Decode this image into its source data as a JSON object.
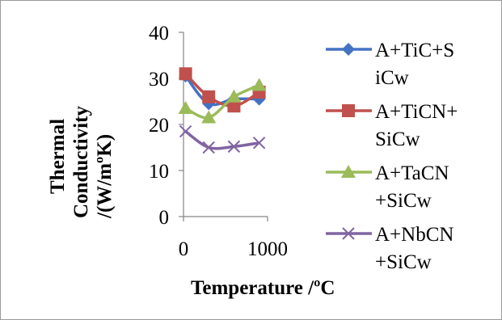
{
  "chart_data": {
    "type": "line",
    "title": "",
    "xlabel": "Temperature /ºC",
    "ylabel_lines": [
      "Thermal",
      "Conductivity",
      "/(W/mºK)"
    ],
    "xlim": [
      0,
      1000
    ],
    "ylim": [
      0,
      40
    ],
    "x_ticks": [
      "0",
      "1000"
    ],
    "y_ticks": [
      "0",
      "10",
      "20",
      "30",
      "40"
    ],
    "grid": false,
    "legend_position": "right",
    "series": [
      {
        "name_lines": [
          "A+TiC+S",
          "iCw"
        ],
        "color": "#4472C4",
        "marker": "diamond",
        "x": [
          25,
          300,
          600,
          900
        ],
        "y": [
          30.5,
          24.5,
          25.5,
          25.5
        ]
      },
      {
        "name_lines": [
          "A+TiCN+",
          "SiCw"
        ],
        "color": "#C0504D",
        "marker": "square",
        "x": [
          25,
          300,
          600,
          900
        ],
        "y": [
          31,
          26,
          24,
          27
        ]
      },
      {
        "name_lines": [
          "A+TaCN",
          "+SiCw"
        ],
        "color": "#9BBB59",
        "marker": "triangle",
        "x": [
          25,
          300,
          600,
          900
        ],
        "y": [
          23.5,
          21.5,
          26,
          28.5
        ]
      },
      {
        "name_lines": [
          "A+NbCN",
          "+SiCw"
        ],
        "color": "#8064A2",
        "marker": "x",
        "x": [
          25,
          300,
          600,
          900
        ],
        "y": [
          18.5,
          15,
          15.2,
          16
        ]
      }
    ]
  }
}
